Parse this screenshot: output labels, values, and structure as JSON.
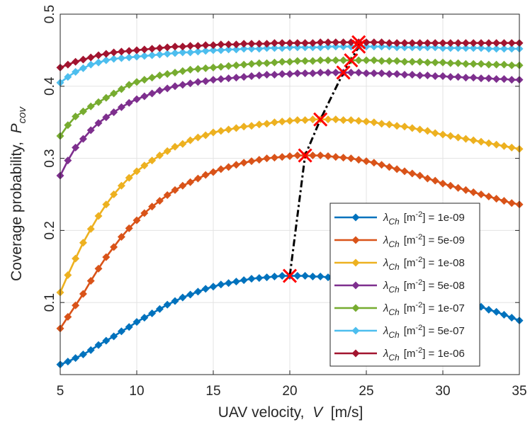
{
  "chart_data": {
    "type": "line",
    "xlabel": {
      "text": "UAV velocity,  ",
      "var": "V",
      "unit": "  [m/s]"
    },
    "ylabel": {
      "text": "Coverage probability,  ",
      "var": "P",
      "sub": "cov"
    },
    "xlim": [
      5,
      35
    ],
    "ylim": [
      0,
      0.5
    ],
    "xticks": [
      "5",
      "10",
      "15",
      "20",
      "25",
      "30",
      "35"
    ],
    "yticks": [
      "0.1",
      "0.2",
      "0.3",
      "0.4",
      "0.5"
    ],
    "grid": true,
    "legend": {
      "placement": "bottom-right",
      "symbol": "λ",
      "symbol_sub": "Ch",
      "unit_open": "[m",
      "unit_exp": "-2",
      "unit_close": "] = "
    },
    "x": [
      5,
      5.5,
      6,
      6.5,
      7,
      7.5,
      8,
      8.5,
      9,
      9.5,
      10,
      10.5,
      11,
      11.5,
      12,
      12.5,
      13,
      13.5,
      14,
      14.5,
      15,
      15.5,
      16,
      16.5,
      17,
      17.5,
      18,
      18.5,
      19,
      19.5,
      20,
      20.5,
      21,
      21.5,
      22,
      22.5,
      23,
      23.5,
      24,
      24.5,
      25,
      25.5,
      26,
      26.5,
      27,
      27.5,
      28,
      28.5,
      29,
      29.5,
      30,
      30.5,
      31,
      31.5,
      32,
      32.5,
      33,
      33.5,
      34,
      34.5,
      35
    ],
    "series": [
      {
        "name": "1e-09",
        "color": "#0072BD",
        "marker": "diamond",
        "values": [
          0.014,
          0.018,
          0.023,
          0.028,
          0.034,
          0.041,
          0.047,
          0.053,
          0.06,
          0.066,
          0.073,
          0.079,
          0.085,
          0.091,
          0.097,
          0.102,
          0.107,
          0.111,
          0.115,
          0.119,
          0.122,
          0.125,
          0.127,
          0.129,
          0.131,
          0.133,
          0.134,
          0.135,
          0.136,
          0.137,
          0.137,
          0.137,
          0.137,
          0.136,
          0.136,
          0.135,
          0.135,
          0.134,
          0.133,
          0.131,
          0.13,
          0.129,
          0.127,
          0.125,
          0.123,
          0.121,
          0.119,
          0.117,
          0.115,
          0.112,
          0.109,
          0.107,
          0.104,
          0.1,
          0.097,
          0.094,
          0.09,
          0.087,
          0.083,
          0.079,
          0.075
        ]
      },
      {
        "name": "5e-09",
        "color": "#D95319",
        "marker": "diamond",
        "values": [
          0.064,
          0.08,
          0.096,
          0.112,
          0.13,
          0.147,
          0.163,
          0.177,
          0.191,
          0.203,
          0.214,
          0.224,
          0.233,
          0.241,
          0.249,
          0.256,
          0.262,
          0.267,
          0.272,
          0.277,
          0.281,
          0.285,
          0.288,
          0.291,
          0.294,
          0.296,
          0.298,
          0.3,
          0.301,
          0.302,
          0.303,
          0.304,
          0.304,
          0.304,
          0.304,
          0.303,
          0.302,
          0.301,
          0.3,
          0.298,
          0.296,
          0.294,
          0.291,
          0.288,
          0.285,
          0.282,
          0.279,
          0.276,
          0.272,
          0.269,
          0.265,
          0.262,
          0.259,
          0.256,
          0.253,
          0.25,
          0.247,
          0.244,
          0.241,
          0.238,
          0.236
        ]
      },
      {
        "name": "1e-08",
        "color": "#EDB120",
        "marker": "diamond",
        "values": [
          0.114,
          0.138,
          0.161,
          0.183,
          0.202,
          0.22,
          0.236,
          0.25,
          0.262,
          0.273,
          0.282,
          0.29,
          0.297,
          0.304,
          0.31,
          0.316,
          0.32,
          0.325,
          0.329,
          0.332,
          0.336,
          0.338,
          0.34,
          0.342,
          0.344,
          0.345,
          0.347,
          0.348,
          0.35,
          0.351,
          0.352,
          0.353,
          0.353,
          0.354,
          0.354,
          0.354,
          0.354,
          0.353,
          0.353,
          0.352,
          0.351,
          0.35,
          0.348,
          0.347,
          0.345,
          0.344,
          0.342,
          0.34,
          0.338,
          0.335,
          0.333,
          0.331,
          0.329,
          0.327,
          0.325,
          0.323,
          0.321,
          0.319,
          0.317,
          0.315,
          0.313
        ]
      },
      {
        "name": "5e-08",
        "color": "#7E2F8E",
        "marker": "diamond",
        "values": [
          0.276,
          0.297,
          0.315,
          0.327,
          0.339,
          0.349,
          0.357,
          0.364,
          0.371,
          0.377,
          0.382,
          0.386,
          0.39,
          0.394,
          0.397,
          0.4,
          0.402,
          0.404,
          0.406,
          0.407,
          0.409,
          0.41,
          0.411,
          0.412,
          0.413,
          0.414,
          0.415,
          0.416,
          0.416,
          0.417,
          0.417,
          0.418,
          0.418,
          0.418,
          0.419,
          0.419,
          0.419,
          0.419,
          0.419,
          0.419,
          0.418,
          0.418,
          0.418,
          0.417,
          0.417,
          0.416,
          0.416,
          0.415,
          0.415,
          0.414,
          0.414,
          0.413,
          0.413,
          0.412,
          0.412,
          0.411,
          0.411,
          0.41,
          0.41,
          0.409,
          0.409
        ]
      },
      {
        "name": "1e-07",
        "color": "#77AC30",
        "marker": "diamond",
        "values": [
          0.331,
          0.346,
          0.358,
          0.365,
          0.372,
          0.378,
          0.384,
          0.39,
          0.396,
          0.402,
          0.406,
          0.409,
          0.412,
          0.415,
          0.417,
          0.419,
          0.421,
          0.423,
          0.424,
          0.425,
          0.426,
          0.427,
          0.428,
          0.429,
          0.43,
          0.431,
          0.432,
          0.432,
          0.433,
          0.434,
          0.434,
          0.435,
          0.435,
          0.435,
          0.436,
          0.436,
          0.436,
          0.436,
          0.436,
          0.436,
          0.436,
          0.436,
          0.435,
          0.435,
          0.435,
          0.434,
          0.434,
          0.434,
          0.433,
          0.433,
          0.433,
          0.432,
          0.432,
          0.431,
          0.431,
          0.431,
          0.43,
          0.43,
          0.43,
          0.429,
          0.429
        ]
      },
      {
        "name": "5e-07",
        "color": "#4DBEEE",
        "marker": "diamond",
        "values": [
          0.405,
          0.413,
          0.42,
          0.425,
          0.43,
          0.433,
          0.436,
          0.438,
          0.439,
          0.44,
          0.441,
          0.442,
          0.443,
          0.444,
          0.445,
          0.446,
          0.447,
          0.447,
          0.448,
          0.449,
          0.45,
          0.45,
          0.451,
          0.451,
          0.452,
          0.452,
          0.452,
          0.453,
          0.453,
          0.453,
          0.454,
          0.454,
          0.454,
          0.454,
          0.454,
          0.455,
          0.455,
          0.455,
          0.455,
          0.455,
          0.455,
          0.455,
          0.455,
          0.455,
          0.454,
          0.454,
          0.454,
          0.454,
          0.454,
          0.454,
          0.453,
          0.453,
          0.453,
          0.453,
          0.453,
          0.453,
          0.452,
          0.452,
          0.452,
          0.452,
          0.452
        ]
      },
      {
        "name": "1e-06",
        "color": "#A2142F",
        "marker": "diamond",
        "values": [
          0.426,
          0.43,
          0.434,
          0.437,
          0.44,
          0.443,
          0.445,
          0.447,
          0.448,
          0.449,
          0.45,
          0.451,
          0.452,
          0.453,
          0.454,
          0.455,
          0.455,
          0.456,
          0.456,
          0.457,
          0.457,
          0.458,
          0.458,
          0.458,
          0.459,
          0.459,
          0.459,
          0.459,
          0.46,
          0.46,
          0.46,
          0.46,
          0.46,
          0.46,
          0.461,
          0.461,
          0.461,
          0.461,
          0.461,
          0.461,
          0.461,
          0.461,
          0.461,
          0.46,
          0.46,
          0.46,
          0.46,
          0.46,
          0.46,
          0.46,
          0.46,
          0.46,
          0.46,
          0.46,
          0.46,
          0.46,
          0.46,
          0.46,
          0.46,
          0.46,
          0.46
        ]
      }
    ],
    "optimum": {
      "line_color": "#000000",
      "line_style": "dash-dot",
      "marker": "x",
      "marker_color": "#FF0000",
      "points": [
        {
          "x": 20,
          "y": 0.137
        },
        {
          "x": 21,
          "y": 0.304
        },
        {
          "x": 22,
          "y": 0.354
        },
        {
          "x": 23.5,
          "y": 0.419
        },
        {
          "x": 24,
          "y": 0.436
        },
        {
          "x": 24.5,
          "y": 0.455
        },
        {
          "x": 24.5,
          "y": 0.461
        }
      ]
    }
  }
}
